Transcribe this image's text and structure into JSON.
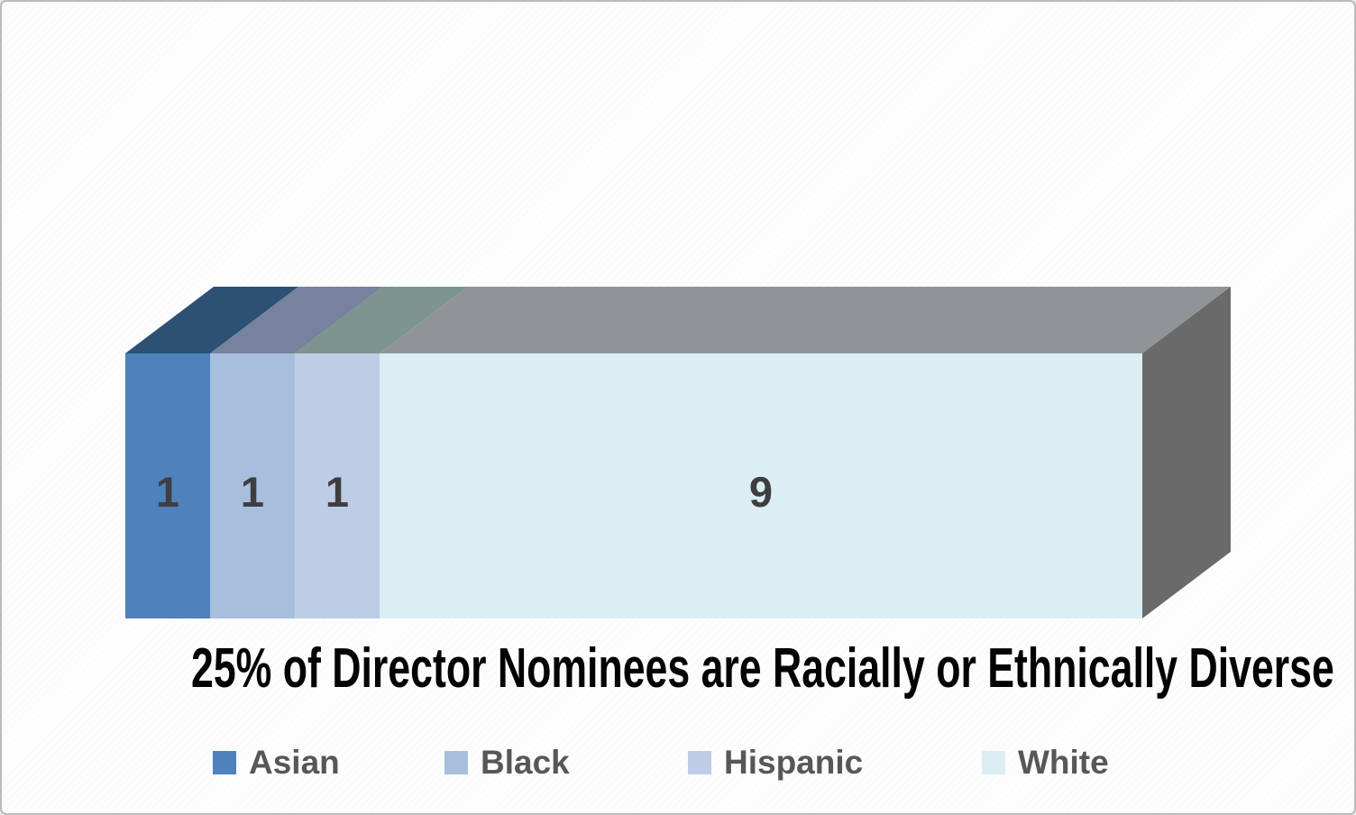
{
  "chart_data": {
    "type": "bar",
    "variant": "3d-horizontal-stacked",
    "title": "25% of Director Nominees are Racially or Ethnically Diverse",
    "categories": [
      "Asian",
      "Black",
      "Hispanic",
      "White"
    ],
    "values": [
      1,
      1,
      1,
      9
    ],
    "data_labels": [
      "1",
      "1",
      "1",
      "9"
    ],
    "total": 12,
    "legend_position": "bottom",
    "axes_visible": false,
    "gridlines": false,
    "colors": {
      "front": [
        "#4F81BD",
        "#A7BFDC",
        "#BDCDE6",
        "#DAEEF3"
      ],
      "top": [
        "#2C5172",
        "#76829E",
        "#7D948F",
        "#919496"
      ],
      "side": "#6A6A6A",
      "label_text": "#3E3E40",
      "title_text": "#030303",
      "legend_text": "#57575A"
    }
  }
}
